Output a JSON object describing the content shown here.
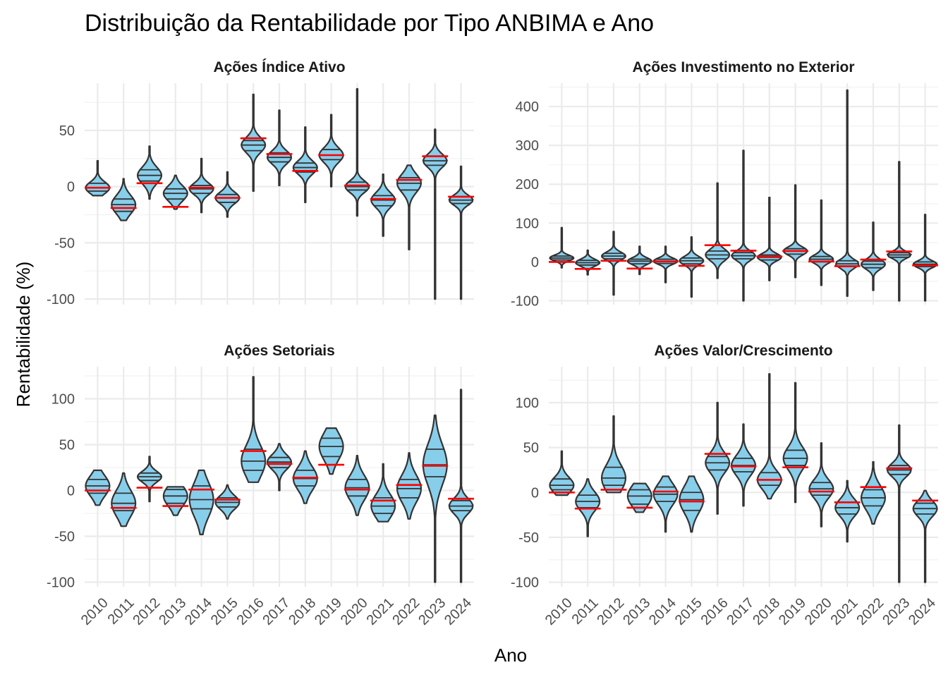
{
  "chart_data": {
    "type": "violin",
    "title": "Distribuição da Rentabilidade por Tipo ANBIMA e Ano",
    "xlabel": "Ano",
    "ylabel": "Rentabilidade (%)",
    "categories": [
      "2010",
      "2011",
      "2012",
      "2013",
      "2014",
      "2015",
      "2016",
      "2017",
      "2018",
      "2019",
      "2020",
      "2021",
      "2022",
      "2023",
      "2024"
    ],
    "grid": true,
    "fill_color": "#87CEEB",
    "outline_color": "#333333",
    "median_line_color": "#ff0000",
    "panels": [
      {
        "name": "Ações Índice Ativo",
        "ylim": [
          -105,
          92
        ],
        "yticks": [
          -100,
          -50,
          0,
          50
        ],
        "ytick_labels": [
          "-100",
          "-50",
          "0",
          "50"
        ],
        "series": [
          {
            "year": "2010",
            "min": -8,
            "max": 23,
            "q1": -4,
            "median": -1,
            "q3": 3,
            "red": -1
          },
          {
            "year": "2011",
            "min": -30,
            "max": 7,
            "q1": -22,
            "median": -16,
            "q3": -11,
            "red": -19
          },
          {
            "year": "2012",
            "min": -11,
            "max": 36,
            "q1": 5,
            "median": 10,
            "q3": 15,
            "red": 3
          },
          {
            "year": "2013",
            "min": -20,
            "max": 10,
            "q1": -11,
            "median": -6,
            "q3": -2,
            "red": -18
          },
          {
            "year": "2014",
            "min": -23,
            "max": 25,
            "q1": -6,
            "median": -2,
            "q3": 1,
            "red": -1
          },
          {
            "year": "2015",
            "min": -27,
            "max": 13,
            "q1": -14,
            "median": -10,
            "q3": -7,
            "red": -10
          },
          {
            "year": "2016",
            "min": -4,
            "max": 82,
            "q1": 32,
            "median": 37,
            "q3": 41,
            "red": 43
          },
          {
            "year": "2017",
            "min": 1,
            "max": 68,
            "q1": 22,
            "median": 26,
            "q3": 30,
            "red": 29
          },
          {
            "year": "2018",
            "min": -14,
            "max": 53,
            "q1": 13,
            "median": 17,
            "q3": 21,
            "red": 14
          },
          {
            "year": "2019",
            "min": 0,
            "max": 64,
            "q1": 24,
            "median": 28,
            "q3": 33,
            "red": 28
          },
          {
            "year": "2020",
            "min": -26,
            "max": 87,
            "q1": -3,
            "median": 0,
            "q3": 4,
            "red": 1
          },
          {
            "year": "2021",
            "min": -44,
            "max": 11,
            "q1": -17,
            "median": -12,
            "q3": -8,
            "red": -11
          },
          {
            "year": "2022",
            "min": -56,
            "max": 19,
            "q1": -3,
            "median": 3,
            "q3": 8,
            "red": 6
          },
          {
            "year": "2023",
            "min": -100,
            "max": 51,
            "q1": 19,
            "median": 23,
            "q3": 27,
            "red": 27
          },
          {
            "year": "2024",
            "min": -100,
            "max": 18,
            "q1": -15,
            "median": -12,
            "q3": -9,
            "red": -9
          }
        ]
      },
      {
        "name": "Ações Investimento no Exterior",
        "ylim": [
          -110,
          460
        ],
        "yticks": [
          -100,
          0,
          100,
          200,
          300,
          400
        ],
        "ytick_labels": [
          "-100",
          "0",
          "100",
          "200",
          "300",
          "400"
        ],
        "series": [
          {
            "year": "2010",
            "min": -15,
            "max": 88,
            "q1": 5,
            "median": 10,
            "q3": 15,
            "red": 0
          },
          {
            "year": "2011",
            "min": -33,
            "max": 30,
            "q1": -8,
            "median": -2,
            "q3": 4,
            "red": -18
          },
          {
            "year": "2012",
            "min": -85,
            "max": 78,
            "q1": 8,
            "median": 15,
            "q3": 22,
            "red": 3
          },
          {
            "year": "2013",
            "min": -32,
            "max": 40,
            "q1": -5,
            "median": 2,
            "q3": 7,
            "red": -17
          },
          {
            "year": "2014",
            "min": -53,
            "max": 40,
            "q1": -4,
            "median": 2,
            "q3": 7,
            "red": 1
          },
          {
            "year": "2015",
            "min": -90,
            "max": 64,
            "q1": -5,
            "median": 3,
            "q3": 10,
            "red": -10
          },
          {
            "year": "2016",
            "min": -42,
            "max": 203,
            "q1": 8,
            "median": 18,
            "q3": 28,
            "red": 43
          },
          {
            "year": "2017",
            "min": -100,
            "max": 287,
            "q1": 8,
            "median": 16,
            "q3": 24,
            "red": 29
          },
          {
            "year": "2018",
            "min": -48,
            "max": 166,
            "q1": 5,
            "median": 12,
            "q3": 18,
            "red": 14
          },
          {
            "year": "2019",
            "min": -40,
            "max": 198,
            "q1": 20,
            "median": 28,
            "q3": 34,
            "red": 28
          },
          {
            "year": "2020",
            "min": -60,
            "max": 159,
            "q1": 0,
            "median": 7,
            "q3": 14,
            "red": 1
          },
          {
            "year": "2021",
            "min": -88,
            "max": 442,
            "q1": -12,
            "median": -5,
            "q3": 3,
            "red": -11
          },
          {
            "year": "2022",
            "min": -73,
            "max": 102,
            "q1": -15,
            "median": -6,
            "q3": 2,
            "red": 6
          },
          {
            "year": "2023",
            "min": -100,
            "max": 258,
            "q1": 12,
            "median": 18,
            "q3": 24,
            "red": 27
          },
          {
            "year": "2024",
            "min": -100,
            "max": 122,
            "q1": -12,
            "median": -6,
            "q3": 0,
            "red": -9
          }
        ]
      },
      {
        "name": "Ações Setoriais",
        "ylim": [
          -105,
          135
        ],
        "yticks": [
          -100,
          -50,
          0,
          50,
          100
        ],
        "ytick_labels": [
          "-100",
          "-50",
          "0",
          "50",
          "100"
        ],
        "series": [
          {
            "year": "2010",
            "min": -16,
            "max": 22,
            "q1": -3,
            "median": 5,
            "q3": 12,
            "red": 0
          },
          {
            "year": "2011",
            "min": -39,
            "max": 19,
            "q1": -22,
            "median": -14,
            "q3": -3,
            "red": -19
          },
          {
            "year": "2012",
            "min": -12,
            "max": 37,
            "q1": 11,
            "median": 15,
            "q3": 19,
            "red": 3
          },
          {
            "year": "2013",
            "min": -27,
            "max": 4,
            "q1": -14,
            "median": -6,
            "q3": 1,
            "red": -17
          },
          {
            "year": "2014",
            "min": -48,
            "max": 22,
            "q1": -20,
            "median": -10,
            "q3": 5,
            "red": 1
          },
          {
            "year": "2015",
            "min": -31,
            "max": 6,
            "q1": -18,
            "median": -13,
            "q3": -8,
            "red": -10
          },
          {
            "year": "2016",
            "min": 9,
            "max": 124,
            "q1": 22,
            "median": 32,
            "q3": 45,
            "red": 43
          },
          {
            "year": "2017",
            "min": 0,
            "max": 51,
            "q1": 25,
            "median": 31,
            "q3": 36,
            "red": 29
          },
          {
            "year": "2018",
            "min": -14,
            "max": 43,
            "q1": 5,
            "median": 13,
            "q3": 22,
            "red": 14
          },
          {
            "year": "2019",
            "min": 18,
            "max": 68,
            "q1": 37,
            "median": 48,
            "q3": 57,
            "red": 28
          },
          {
            "year": "2020",
            "min": -27,
            "max": 38,
            "q1": -6,
            "median": 3,
            "q3": 12,
            "red": 1
          },
          {
            "year": "2021",
            "min": -34,
            "max": 29,
            "q1": -25,
            "median": -17,
            "q3": -8,
            "red": -11
          },
          {
            "year": "2022",
            "min": -31,
            "max": 41,
            "q1": -8,
            "median": 2,
            "q3": 12,
            "red": 6
          },
          {
            "year": "2023",
            "min": -100,
            "max": 82,
            "q1": 15,
            "median": 28,
            "q3": 45,
            "red": 27
          },
          {
            "year": "2024",
            "min": -100,
            "max": 110,
            "q1": -22,
            "median": -17,
            "q3": -11,
            "red": -9
          }
        ]
      },
      {
        "name": "Ações Valor/Crescimento",
        "ylim": [
          -105,
          140
        ],
        "yticks": [
          -100,
          -50,
          0,
          50,
          100
        ],
        "ytick_labels": [
          "-100",
          "-50",
          "0",
          "50",
          "100"
        ],
        "series": [
          {
            "year": "2010",
            "min": -3,
            "max": 46,
            "q1": 3,
            "median": 8,
            "q3": 15,
            "red": 0
          },
          {
            "year": "2011",
            "min": -49,
            "max": 15,
            "q1": -17,
            "median": -10,
            "q3": -3,
            "red": -18
          },
          {
            "year": "2012",
            "min": 0,
            "max": 85,
            "q1": 8,
            "median": 16,
            "q3": 28,
            "red": 3
          },
          {
            "year": "2013",
            "min": -22,
            "max": 10,
            "q1": -13,
            "median": -4,
            "q3": 3,
            "red": -17
          },
          {
            "year": "2014",
            "min": -44,
            "max": 18,
            "q1": -10,
            "median": -2,
            "q3": 6,
            "red": 1
          },
          {
            "year": "2015",
            "min": -44,
            "max": 18,
            "q1": -20,
            "median": -8,
            "q3": 0,
            "red": -10
          },
          {
            "year": "2016",
            "min": -24,
            "max": 100,
            "q1": 25,
            "median": 33,
            "q3": 40,
            "red": 43
          },
          {
            "year": "2017",
            "min": -15,
            "max": 76,
            "q1": 23,
            "median": 30,
            "q3": 38,
            "red": 29
          },
          {
            "year": "2018",
            "min": -7,
            "max": 132,
            "q1": 8,
            "median": 14,
            "q3": 22,
            "red": 14
          },
          {
            "year": "2019",
            "min": -11,
            "max": 122,
            "q1": 30,
            "median": 38,
            "q3": 47,
            "red": 28
          },
          {
            "year": "2020",
            "min": -38,
            "max": 55,
            "q1": -3,
            "median": 4,
            "q3": 11,
            "red": 1
          },
          {
            "year": "2021",
            "min": -55,
            "max": 13,
            "q1": -24,
            "median": -17,
            "q3": -11,
            "red": -11
          },
          {
            "year": "2022",
            "min": -35,
            "max": 34,
            "q1": -15,
            "median": -6,
            "q3": 3,
            "red": 6
          },
          {
            "year": "2023",
            "min": -100,
            "max": 75,
            "q1": 20,
            "median": 25,
            "q3": 30,
            "red": 27
          },
          {
            "year": "2024",
            "min": -100,
            "max": 2,
            "q1": -24,
            "median": -18,
            "q3": -12,
            "red": -9
          }
        ]
      }
    ]
  }
}
